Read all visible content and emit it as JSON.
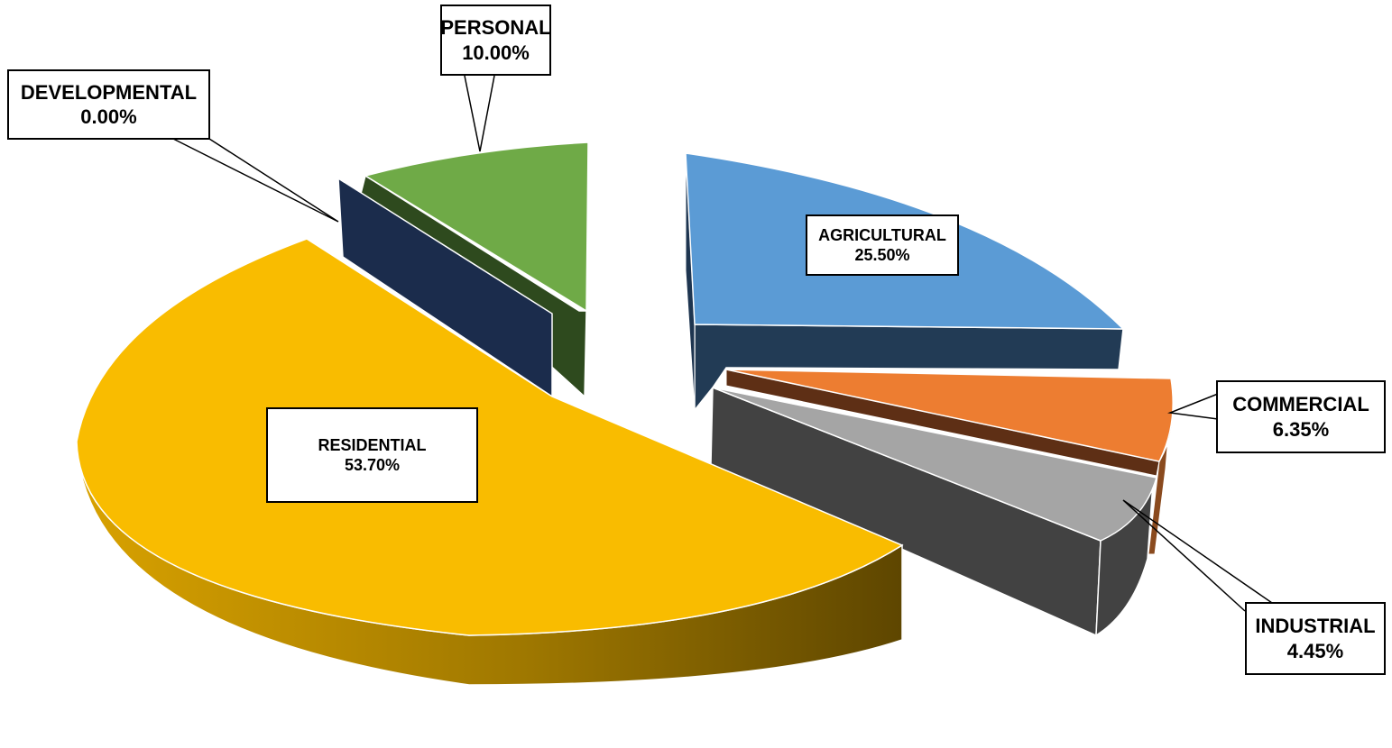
{
  "chart_data": {
    "type": "pie",
    "slices": [
      {
        "name": "RESIDENTIAL",
        "value": 53.7,
        "label_value": "53.70%",
        "color": "#F9BC00",
        "side_light": "#D9A200",
        "side_dark": "#5E4600"
      },
      {
        "name": "DEVELOPMENTAL",
        "value": 0.0,
        "label_value": "0.00%",
        "color": "#1B2C4C",
        "side_light": "#1B2C4C",
        "side_dark": "#1B2C4C"
      },
      {
        "name": "PERSONAL",
        "value": 10.0,
        "label_value": "10.00%",
        "color": "#6FAA47",
        "side_light": "#2E4A1E",
        "side_dark": "#2E4A1E"
      },
      {
        "name": "AGRICULTURAL",
        "value": 25.5,
        "label_value": "25.50%",
        "color": "#5B9BD5",
        "side_light": "#223B55",
        "side_dark": "#223B55"
      },
      {
        "name": "COMMERCIAL",
        "value": 6.35,
        "label_value": "6.35%",
        "color": "#ED7D31",
        "side_light": "#5E2F15",
        "side_dark": "#5E2F15"
      },
      {
        "name": "INDUSTRIAL",
        "value": 4.45,
        "label_value": "4.45%",
        "color": "#A5A5A5",
        "side_light": "#424242",
        "side_dark": "#424242"
      }
    ],
    "style": "3d-exploded",
    "legend": "none"
  }
}
